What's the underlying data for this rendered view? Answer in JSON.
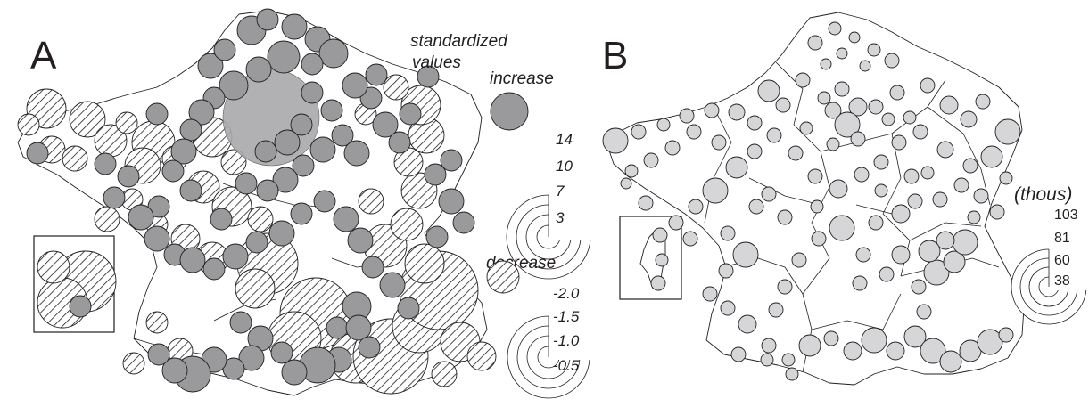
{
  "panel_a": {
    "letter": "A",
    "legend_title_line1": "standardized",
    "legend_title_line2": "values",
    "increase_label": "increase",
    "increase_ticks": [
      "14",
      "10",
      "7",
      "3"
    ],
    "decrease_label": "decrease",
    "decrease_ticks": [
      "-2.0",
      "-1.5",
      "-1.0",
      "-0.5"
    ]
  },
  "panel_b": {
    "letter": "B",
    "legend_title": "(thous)",
    "ticks": [
      "103",
      "81",
      "60",
      "38"
    ]
  },
  "colors": {
    "increase_fill": "#9a9a9c",
    "decrease_hatch": "#231f20",
    "city_fill": "#d6d6d8",
    "outline": "#231f20"
  }
}
